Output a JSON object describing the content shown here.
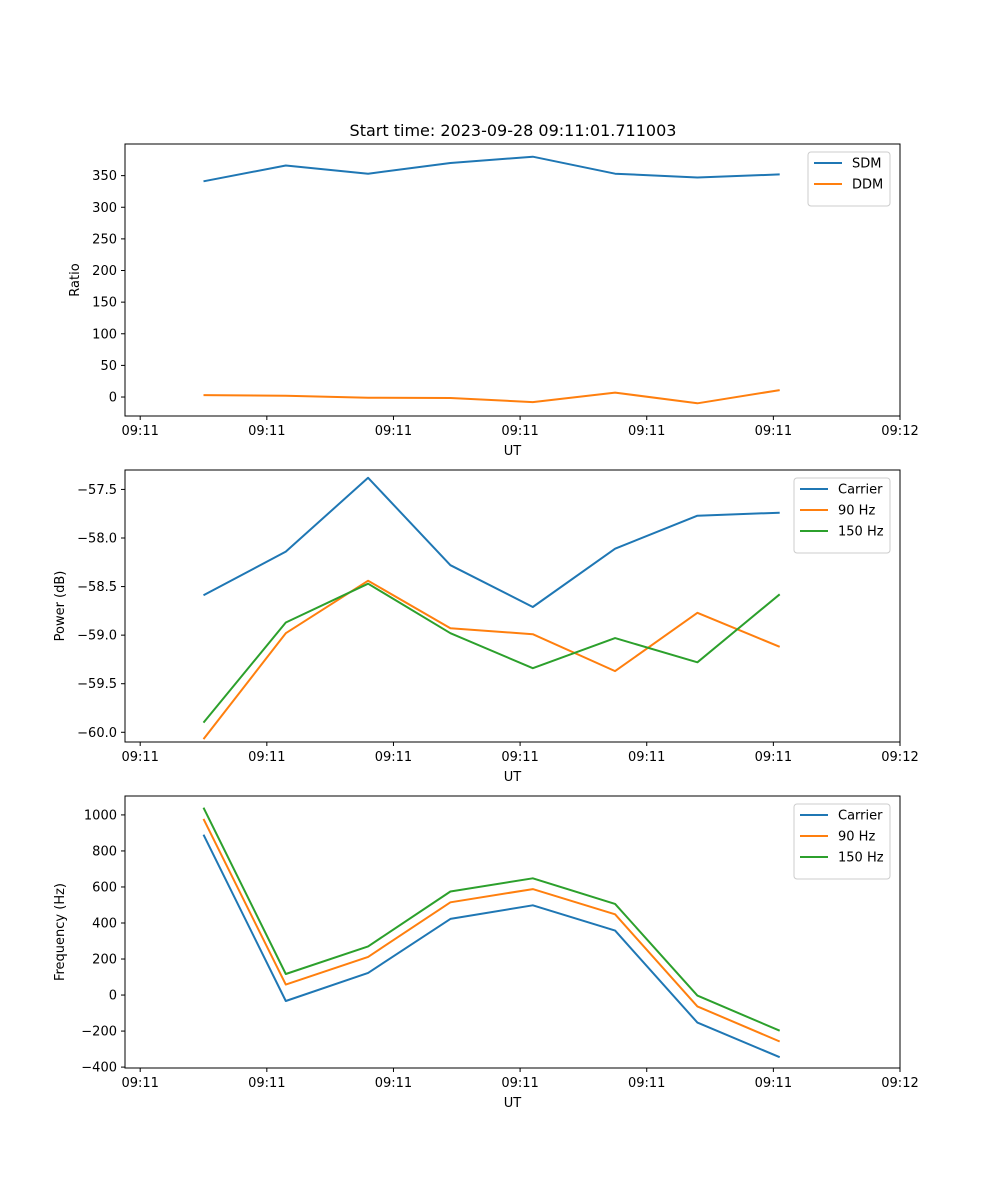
{
  "title": "Start time: 2023-09-28 09:11:01.711003",
  "x_tick_labels": [
    "09:11",
    "09:11",
    "09:11",
    "09:11",
    "09:11",
    "09:11",
    "09:12"
  ],
  "chart_data": [
    {
      "type": "line",
      "title": "Start time: 2023-09-28 09:11:01.711003",
      "xlabel": "UT",
      "ylabel": "Ratio",
      "x": [
        0.5,
        1.15,
        1.8,
        2.45,
        3.1,
        3.75,
        4.4,
        5.05
      ],
      "xlim": [
        -0.12,
        6.0
      ],
      "ylim": [
        -30,
        400
      ],
      "yticks": [
        0,
        50,
        100,
        150,
        200,
        250,
        300,
        350
      ],
      "legend_position": "top-right",
      "series": [
        {
          "name": "SDM",
          "color": "#1f77b4",
          "values": [
            341,
            366,
            353,
            370,
            380,
            353,
            347,
            352
          ]
        },
        {
          "name": "DDM",
          "color": "#ff7f0e",
          "values": [
            3,
            2,
            -1,
            -1.5,
            -8,
            7,
            -10,
            11
          ]
        }
      ]
    },
    {
      "type": "line",
      "xlabel": "UT",
      "ylabel": "Power (dB)",
      "x": [
        0.5,
        1.15,
        1.8,
        2.45,
        3.1,
        3.75,
        4.4,
        5.05
      ],
      "xlim": [
        -0.12,
        6.0
      ],
      "ylim": [
        -60.1,
        -57.3
      ],
      "yticks": [
        -60.0,
        -59.5,
        -59.0,
        -58.5,
        -58.0,
        -57.5
      ],
      "legend_position": "top-right",
      "series": [
        {
          "name": "Carrier",
          "color": "#1f77b4",
          "values": [
            -58.59,
            -58.14,
            -57.38,
            -58.28,
            -58.71,
            -58.11,
            -57.77,
            -57.74
          ]
        },
        {
          "name": "90 Hz",
          "color": "#ff7f0e",
          "values": [
            -60.07,
            -58.98,
            -58.44,
            -58.93,
            -58.99,
            -59.37,
            -58.77,
            -59.12
          ]
        },
        {
          "name": "150 Hz",
          "color": "#2ca02c",
          "values": [
            -59.9,
            -58.87,
            -58.47,
            -58.98,
            -59.34,
            -59.03,
            -59.28,
            -58.58
          ]
        }
      ]
    },
    {
      "type": "line",
      "xlabel": "UT",
      "ylabel": "Frequency (Hz)",
      "x": [
        0.5,
        1.15,
        1.8,
        2.45,
        3.1,
        3.75,
        4.4,
        5.05
      ],
      "xlim": [
        -0.12,
        6.0
      ],
      "ylim": [
        -405,
        1105
      ],
      "yticks": [
        -400,
        -200,
        0,
        200,
        400,
        600,
        800,
        1000
      ],
      "legend_position": "top-right",
      "series": [
        {
          "name": "Carrier",
          "color": "#1f77b4",
          "values": [
            890,
            -33,
            123,
            423,
            498,
            358,
            -153,
            -345
          ]
        },
        {
          "name": "90 Hz",
          "color": "#ff7f0e",
          "values": [
            978,
            58,
            212,
            515,
            588,
            448,
            -63,
            -258
          ]
        },
        {
          "name": "150 Hz",
          "color": "#2ca02c",
          "values": [
            1040,
            117,
            270,
            575,
            648,
            506,
            -3,
            -198
          ]
        }
      ]
    }
  ]
}
